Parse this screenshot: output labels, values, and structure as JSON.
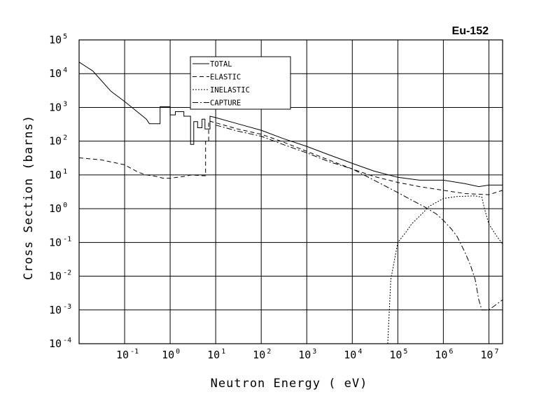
{
  "chart_data": {
    "type": "line",
    "title": "Eu-152",
    "xlabel": "Neutron Energy ( eV)",
    "ylabel": "Cross Section (barns)",
    "xscale": "log",
    "yscale": "log",
    "xlim": [
      0.01,
      20000000
    ],
    "ylim": [
      0.0001,
      100000
    ],
    "grid": true,
    "legend_position": "top-center",
    "x_ticks": [
      {
        "base": "10",
        "exp": "-1",
        "value": 0.1
      },
      {
        "base": "10",
        "exp": "0",
        "value": 1
      },
      {
        "base": "10",
        "exp": "1",
        "value": 10
      },
      {
        "base": "10",
        "exp": "2",
        "value": 100
      },
      {
        "base": "10",
        "exp": "3",
        "value": 1000
      },
      {
        "base": "10",
        "exp": "4",
        "value": 10000
      },
      {
        "base": "10",
        "exp": "5",
        "value": 100000
      },
      {
        "base": "10",
        "exp": "6",
        "value": 1000000
      },
      {
        "base": "10",
        "exp": "7",
        "value": 10000000
      }
    ],
    "y_ticks": [
      {
        "base": "10",
        "exp": "5",
        "value": 100000
      },
      {
        "base": "10",
        "exp": "4",
        "value": 10000
      },
      {
        "base": "10",
        "exp": "3",
        "value": 1000
      },
      {
        "base": "10",
        "exp": "2",
        "value": 100
      },
      {
        "base": "10",
        "exp": "1",
        "value": 10
      },
      {
        "base": "10",
        "exp": "0",
        "value": 1
      },
      {
        "base": "10",
        "exp": "-1",
        "value": 0.1
      },
      {
        "base": "10",
        "exp": "-2",
        "value": 0.01
      },
      {
        "base": "10",
        "exp": "-3",
        "value": 0.001
      },
      {
        "base": "10",
        "exp": "-4",
        "value": 0.0001
      }
    ],
    "series": [
      {
        "name": "TOTAL",
        "dash": "solid",
        "points": [
          [
            0.01,
            22000
          ],
          [
            0.02,
            12000
          ],
          [
            0.05,
            3000
          ],
          [
            0.1,
            1500
          ],
          [
            0.2,
            700
          ],
          [
            0.3,
            450
          ],
          [
            0.35,
            330
          ],
          [
            0.6,
            330
          ],
          [
            0.6,
            1050
          ],
          [
            1.0,
            1050
          ],
          [
            1.0,
            600
          ],
          [
            1.3,
            600
          ],
          [
            1.3,
            750
          ],
          [
            2.0,
            750
          ],
          [
            2.0,
            550
          ],
          [
            2.8,
            550
          ],
          [
            2.8,
            80
          ],
          [
            3.3,
            80
          ],
          [
            3.3,
            380
          ],
          [
            4.0,
            380
          ],
          [
            4.0,
            250
          ],
          [
            5.0,
            250
          ],
          [
            5.0,
            450
          ],
          [
            5.8,
            450
          ],
          [
            5.8,
            230
          ],
          [
            7.5,
            230
          ],
          [
            7.5,
            550
          ],
          [
            10,
            500
          ],
          [
            30,
            330
          ],
          [
            100,
            210
          ],
          [
            300,
            120
          ],
          [
            1000,
            70
          ],
          [
            3000,
            40
          ],
          [
            10000,
            22
          ],
          [
            30000,
            13
          ],
          [
            100000,
            8.5
          ],
          [
            300000,
            7
          ],
          [
            1000000,
            7
          ],
          [
            3000000,
            5.5
          ],
          [
            6000000,
            4.5
          ],
          [
            10000000,
            5
          ],
          [
            20000000,
            5
          ]
        ]
      },
      {
        "name": "ELASTIC",
        "dash": "dashed",
        "points": [
          [
            0.01,
            32
          ],
          [
            0.03,
            28
          ],
          [
            0.1,
            20
          ],
          [
            0.2,
            12
          ],
          [
            0.3,
            10
          ],
          [
            0.5,
            9
          ],
          [
            0.7,
            8
          ],
          [
            1.0,
            8
          ],
          [
            2.0,
            9
          ],
          [
            3.0,
            10
          ],
          [
            5.0,
            9.5
          ],
          [
            6.0,
            9.5
          ],
          [
            6.0,
            100
          ],
          [
            7.0,
            100
          ],
          [
            7.0,
            400
          ],
          [
            10,
            350
          ],
          [
            30,
            230
          ],
          [
            100,
            160
          ],
          [
            300,
            95
          ],
          [
            1000,
            50
          ],
          [
            3000,
            28
          ],
          [
            10000,
            15
          ],
          [
            30000,
            9
          ],
          [
            100000,
            6
          ],
          [
            300000,
            4.5
          ],
          [
            1000000,
            3.5
          ],
          [
            3000000,
            2.8
          ],
          [
            10000000,
            2.6
          ],
          [
            20000000,
            3.5
          ]
        ]
      },
      {
        "name": "INELASTIC",
        "dash": "dotted",
        "points": [
          [
            60000,
            0.0001
          ],
          [
            70000,
            0.008
          ],
          [
            100000,
            0.1
          ],
          [
            150000,
            0.2
          ],
          [
            200000,
            0.35
          ],
          [
            300000,
            0.6
          ],
          [
            500000,
            1.2
          ],
          [
            1000000,
            2
          ],
          [
            2000000,
            2.3
          ],
          [
            5000000,
            2.4
          ],
          [
            7000000,
            2.2
          ],
          [
            8000000,
            1.0
          ],
          [
            10000000,
            0.35
          ],
          [
            15000000,
            0.15
          ],
          [
            20000000,
            0.09
          ]
        ]
      },
      {
        "name": "CAPTURE",
        "dash": "dashdot",
        "points": [
          [
            10,
            300
          ],
          [
            30,
            200
          ],
          [
            100,
            140
          ],
          [
            300,
            80
          ],
          [
            1000,
            45
          ],
          [
            3000,
            25
          ],
          [
            10000,
            15
          ],
          [
            30000,
            7
          ],
          [
            100000,
            3
          ],
          [
            200000,
            1.8
          ],
          [
            400000,
            1.1
          ],
          [
            700000,
            0.7
          ],
          [
            1000000,
            0.45
          ],
          [
            1500000,
            0.25
          ],
          [
            2000000,
            0.15
          ],
          [
            3000000,
            0.05
          ],
          [
            4000000,
            0.02
          ],
          [
            5000000,
            0.008
          ],
          [
            6000000,
            0.002
          ],
          [
            7000000,
            0.001
          ],
          [
            10000000,
            0.001
          ],
          [
            20000000,
            0.002
          ]
        ]
      }
    ]
  }
}
